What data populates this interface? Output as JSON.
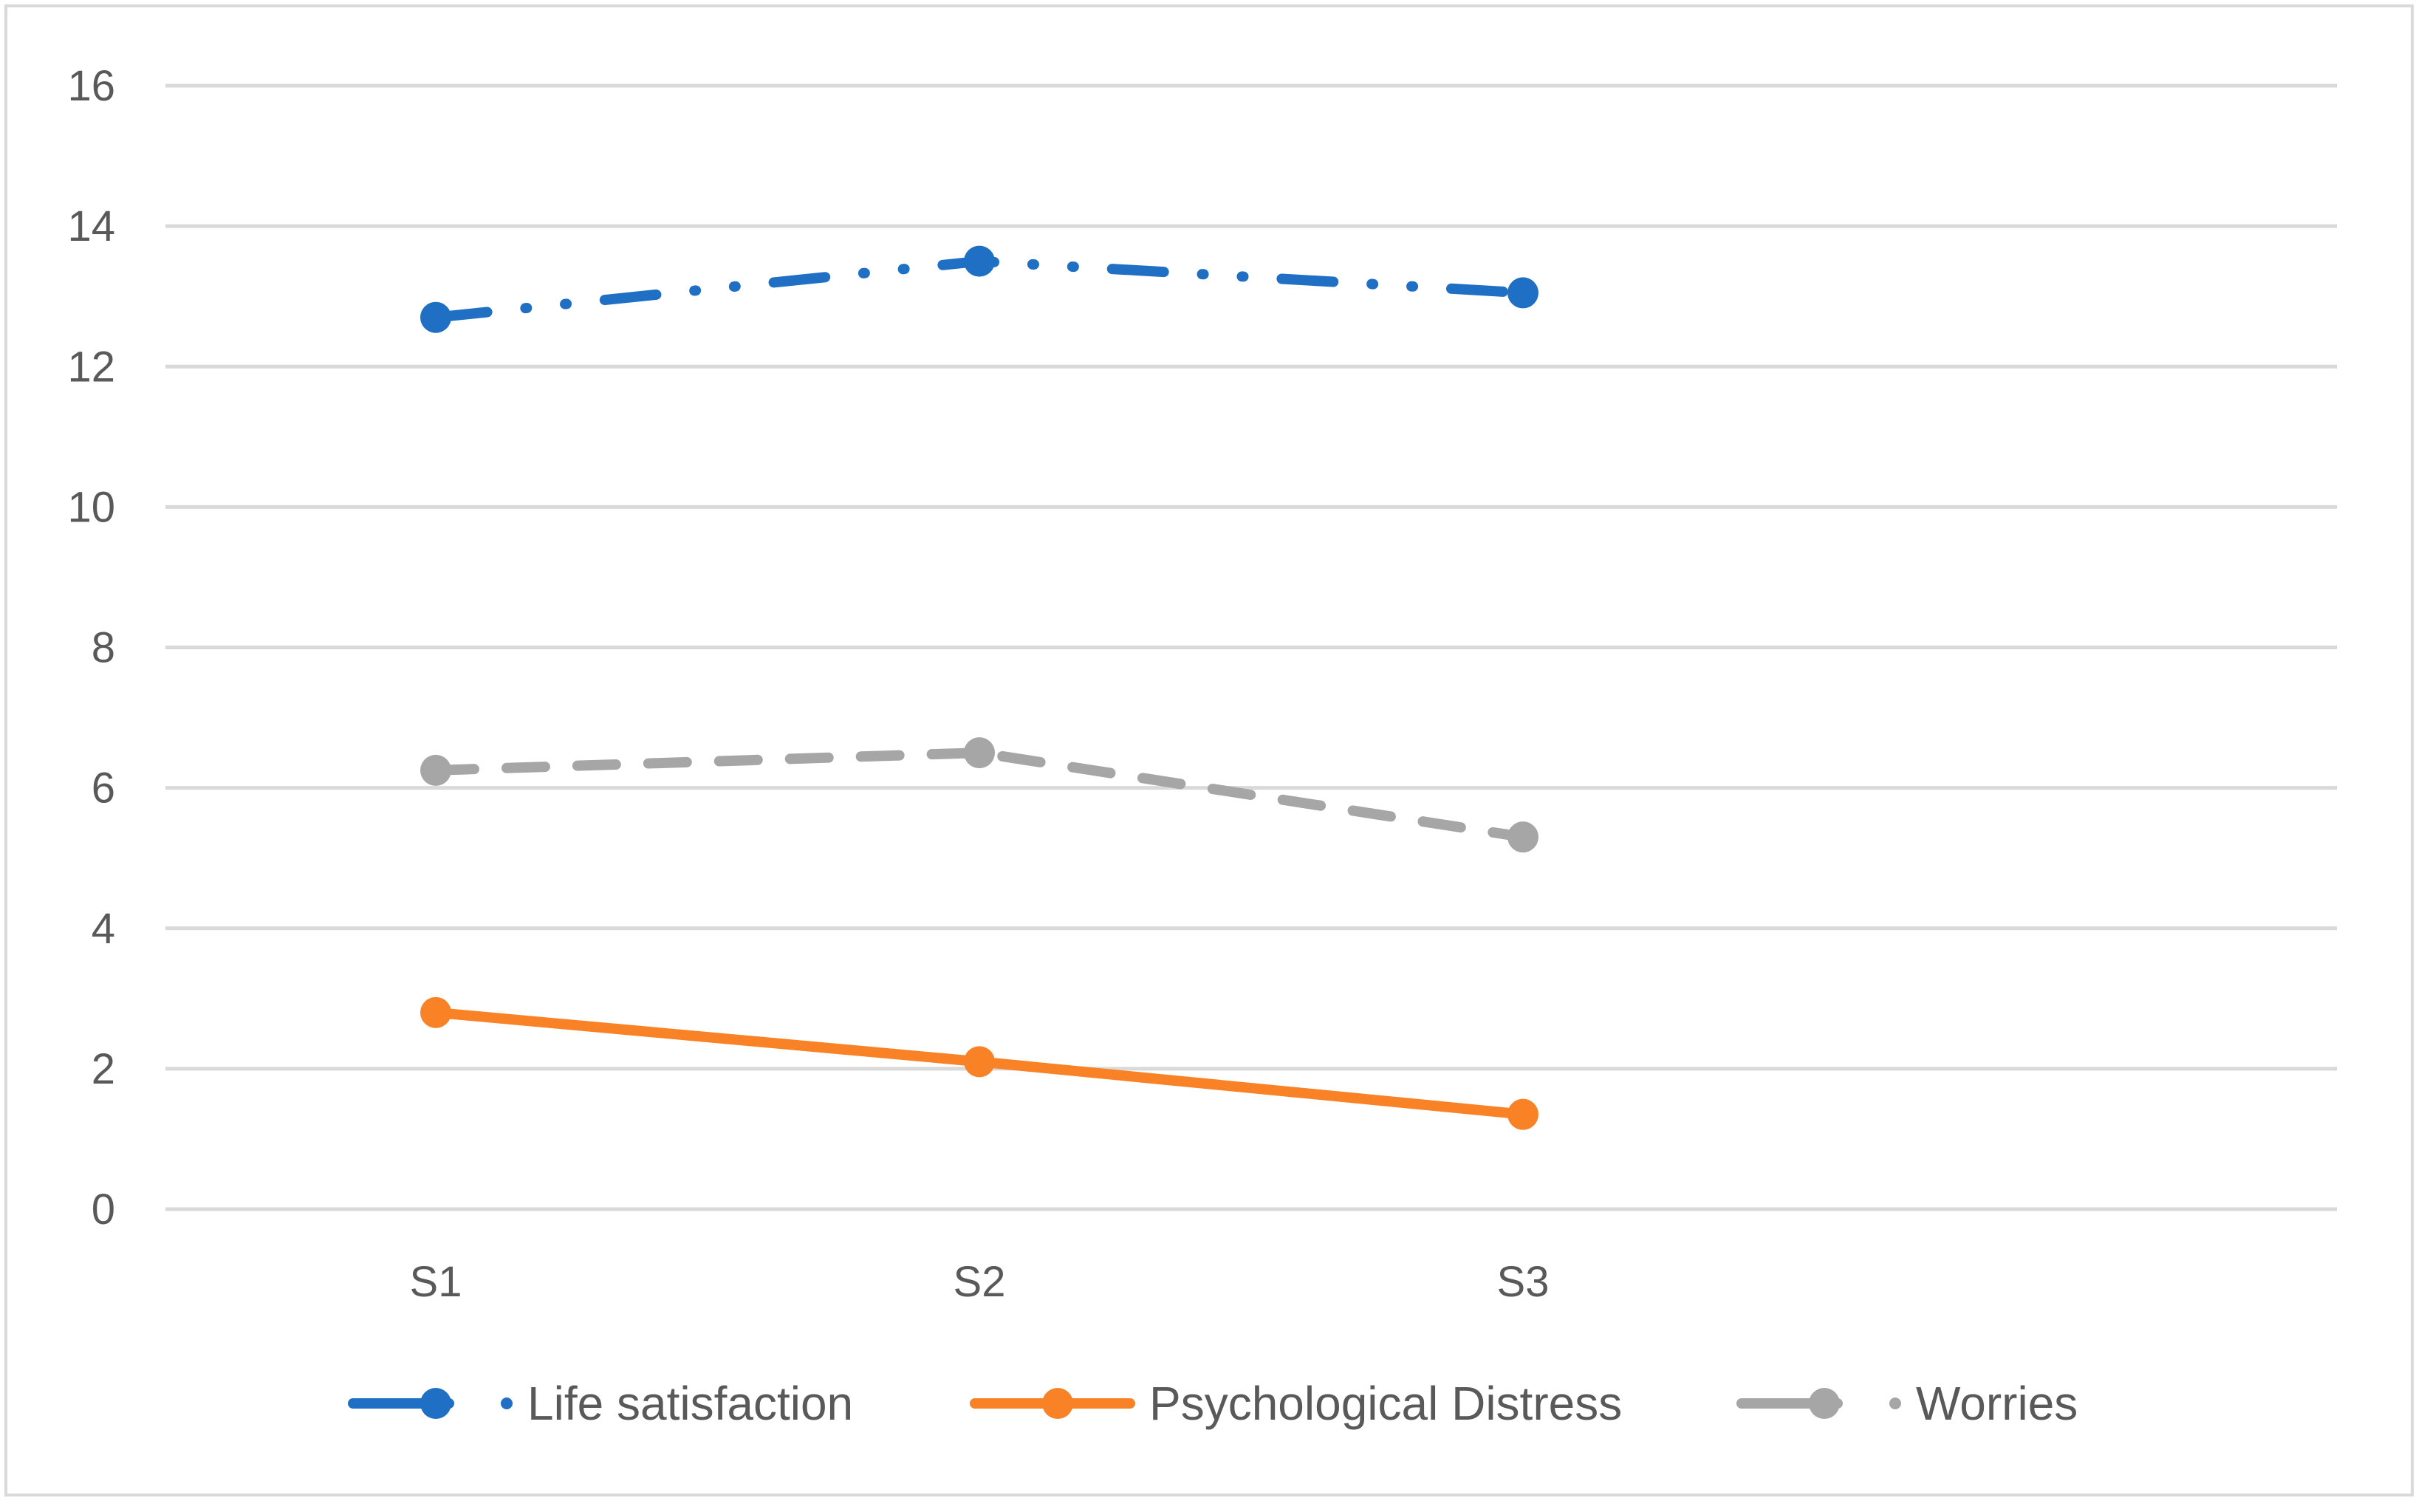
{
  "chart_data": {
    "type": "line",
    "title": "",
    "xlabel": "",
    "ylabel": "",
    "categories": [
      "S1",
      "S2",
      "S3"
    ],
    "ylim": [
      0,
      16
    ],
    "yticks": [
      0,
      2,
      4,
      6,
      8,
      10,
      12,
      14,
      16
    ],
    "ytick_labels": [
      "0",
      "2",
      "4",
      "6",
      "8",
      "10",
      "12",
      "14",
      "16"
    ],
    "grid": true,
    "legend_position": "bottom",
    "series": [
      {
        "name": "Life satisfaction",
        "values": [
          12.7,
          13.5,
          13.05
        ],
        "color": "#1f6fc4",
        "dash": "long-dash-dot-dot"
      },
      {
        "name": "Psychological Distress",
        "values": [
          2.8,
          2.1,
          1.35
        ],
        "color": "#f98227",
        "dash": "solid"
      },
      {
        "name": "Worries",
        "values": [
          6.25,
          6.5,
          5.3
        ],
        "color": "#a6a6a6",
        "dash": "dash"
      }
    ]
  }
}
